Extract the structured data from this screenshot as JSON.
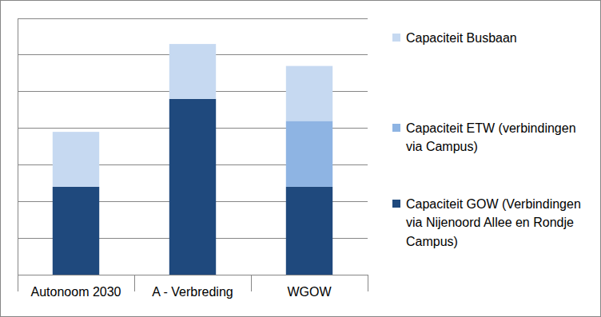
{
  "chart_data": {
    "type": "bar",
    "stacked": true,
    "categories": [
      "Autonoom 2030",
      "A - Verbreding",
      "WGOW"
    ],
    "series": [
      {
        "name": "Capaciteit GOW (Verbindingen via Nijenoord Allee en Rondje Campus)",
        "color": "#1f497d",
        "values": [
          2.4,
          4.8,
          2.4
        ]
      },
      {
        "name": "Capaciteit ETW (verbindingen via Campus)",
        "color": "#8eb4e3",
        "values": [
          0,
          0,
          1.8
        ]
      },
      {
        "name": "Capaciteit Busbaan",
        "color": "#c6d9f1",
        "values": [
          1.5,
          1.5,
          1.5
        ]
      }
    ],
    "ylim": [
      0,
      7
    ],
    "yticks": [
      0,
      1,
      2,
      3,
      4,
      5,
      6,
      7
    ],
    "grid": true,
    "tick_labels": "x",
    "legend": "right"
  }
}
